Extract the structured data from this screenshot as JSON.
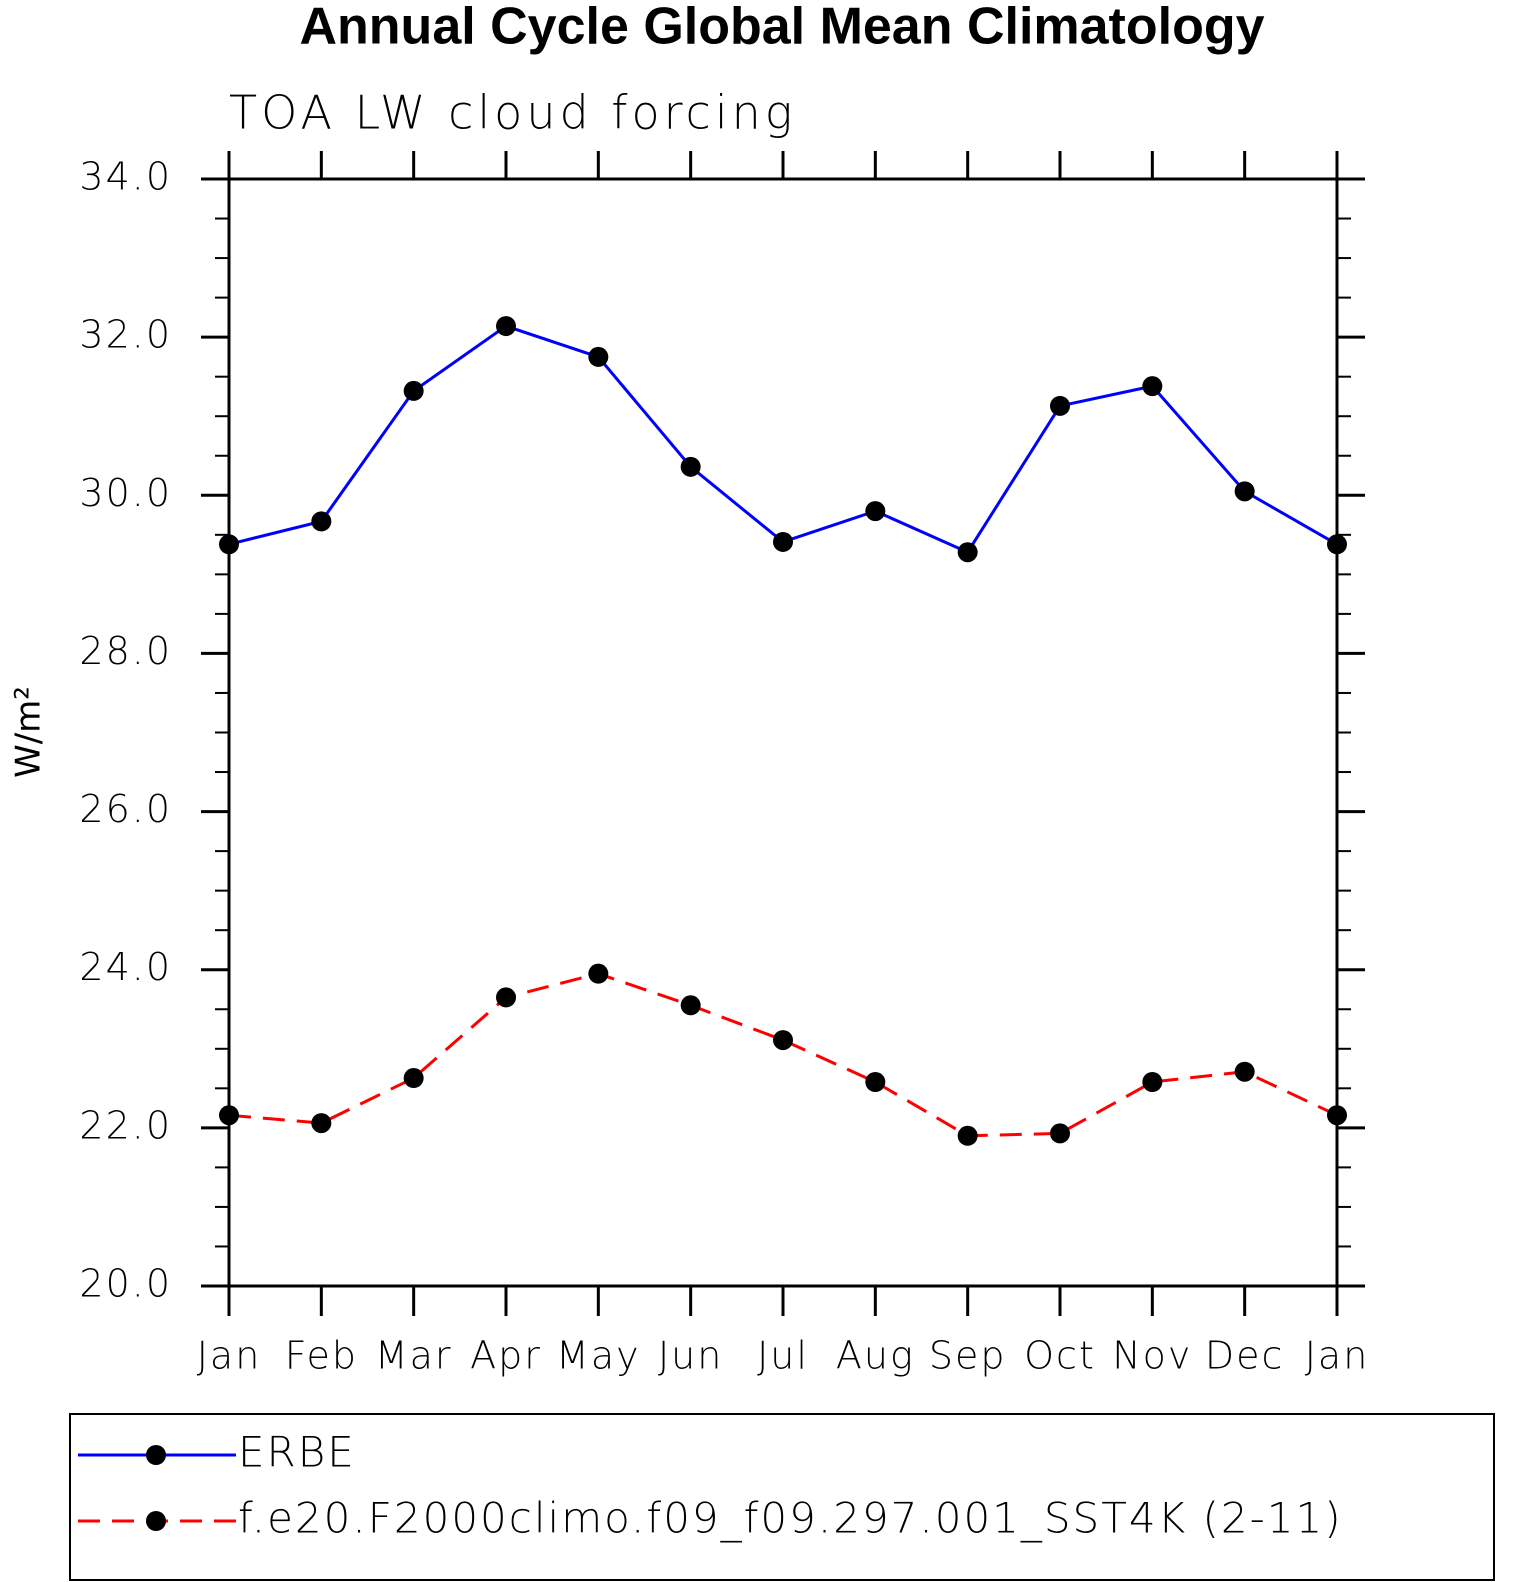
{
  "chart_data": {
    "type": "line",
    "title": "Annual Cycle Global Mean Climatology",
    "subtitle": "TOA LW cloud forcing",
    "y_label": "W/m²",
    "categories": [
      "Jan",
      "Feb",
      "Mar",
      "Apr",
      "May",
      "Jun",
      "Jul",
      "Aug",
      "Sep",
      "Oct",
      "Nov",
      "Dec",
      "Jan"
    ],
    "series": [
      {
        "name": "ERBE",
        "color": "#0000ff",
        "dash": "solid",
        "values": [
          29.38,
          29.67,
          31.32,
          32.14,
          31.75,
          30.36,
          29.41,
          29.8,
          29.28,
          31.13,
          31.38,
          30.05,
          29.38
        ]
      },
      {
        "name": "f.e20.F2000climo.f09_f09.297.001_SST4K (2-11)",
        "color": "#ff0000",
        "dash": "dashed",
        "values": [
          22.16,
          22.06,
          22.63,
          23.65,
          23.95,
          23.55,
          23.11,
          22.58,
          21.9,
          21.93,
          22.58,
          22.71,
          22.16
        ]
      }
    ],
    "ylim": [
      20,
      34
    ],
    "yticks": [
      {
        "value": 20,
        "label": "20.0"
      },
      {
        "value": 22,
        "label": "22.0"
      },
      {
        "value": 24,
        "label": "24.0"
      },
      {
        "value": 26,
        "label": "26.0"
      },
      {
        "value": 28,
        "label": "28.0"
      },
      {
        "value": 30,
        "label": "30.0"
      },
      {
        "value": 32,
        "label": "32.0"
      },
      {
        "value": 34,
        "label": "34.0"
      }
    ],
    "grid": false
  }
}
